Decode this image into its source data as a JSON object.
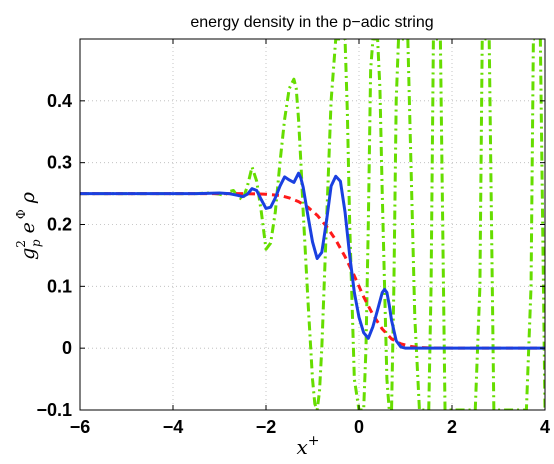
{
  "chart_data": {
    "type": "line",
    "title": "energy density in the p−adic string",
    "xlabel": "x",
    "xlabel_superscript": "+",
    "ylabel_parts": {
      "g": "g",
      "g_sup": "2",
      "g_sub": "p",
      "e": "e",
      "phi": "Φ",
      "rho": "ρ"
    },
    "xlim": [
      -6,
      4
    ],
    "ylim": [
      -0.1,
      0.5
    ],
    "xticks": [
      -6,
      -4,
      -2,
      0,
      2,
      4
    ],
    "xtick_labels": [
      "−6",
      "−4",
      "−2",
      "0",
      "2",
      "4"
    ],
    "yticks": [
      -0.1,
      0,
      0.1,
      0.2,
      0.3,
      0.4
    ],
    "ytick_labels": [
      "−0.1",
      "0",
      "0.1",
      "0.2",
      "0.3",
      "0.4"
    ],
    "grid": true,
    "series": [
      {
        "color": "#66dd00",
        "style": "dash-dot",
        "x": [
          -6,
          -3.5,
          -3.2,
          -3.0,
          -2.9,
          -2.8,
          -2.7,
          -2.6,
          -2.5,
          -2.4,
          -2.3,
          -2.2,
          -2.1,
          -2.0,
          -1.9,
          -1.8,
          -1.7,
          -1.6,
          -1.5,
          -1.4,
          -1.35,
          -1.3,
          -1.25,
          -1.2,
          -1.1,
          -1.0,
          -0.95,
          -0.9,
          -0.85,
          -0.8,
          -0.7,
          -0.6,
          -0.5,
          -0.45,
          -0.4,
          -0.35,
          -0.3,
          -0.25,
          -0.2,
          -0.1,
          0.0,
          0.05,
          0.1,
          0.15,
          0.2,
          0.25,
          0.3,
          0.35,
          0.4,
          0.45,
          0.5,
          0.55,
          0.6,
          0.65,
          0.7,
          0.75,
          0.8,
          0.85,
          0.9,
          0.95,
          1.0,
          1.05,
          1.1,
          1.2,
          1.3,
          1.4,
          1.5,
          1.55,
          1.6,
          1.65,
          1.7,
          1.75,
          1.8,
          1.85,
          1.9,
          2.0,
          2.1,
          2.2,
          2.3,
          2.4,
          2.5,
          2.6,
          2.65,
          2.7,
          2.75,
          2.8,
          2.85,
          2.9,
          3.0,
          3.1,
          3.2,
          3.3,
          3.4,
          3.5,
          3.6,
          3.7,
          3.75,
          3.8,
          3.85,
          3.9,
          3.95,
          4.0
        ],
        "y": [
          0.25,
          0.25,
          0.251,
          0.249,
          0.247,
          0.253,
          0.255,
          0.245,
          0.24,
          0.262,
          0.293,
          0.27,
          0.22,
          0.16,
          0.17,
          0.22,
          0.3,
          0.37,
          0.42,
          0.435,
          0.42,
          0.37,
          0.3,
          0.22,
          0.08,
          -0.05,
          -0.09,
          -0.1,
          -0.07,
          0.0,
          0.2,
          0.4,
          0.5,
          0.5,
          0.5,
          0.5,
          0.5,
          0.38,
          0.2,
          -0.05,
          -0.1,
          -0.1,
          -0.1,
          0.0,
          0.2,
          0.45,
          0.5,
          0.5,
          0.5,
          0.42,
          0.25,
          0.1,
          -0.05,
          -0.1,
          -0.1,
          0.1,
          0.4,
          0.5,
          0.5,
          0.5,
          0.5,
          0.5,
          0.35,
          0.05,
          -0.1,
          -0.1,
          -0.1,
          0.1,
          0.5,
          0.5,
          0.5,
          0.5,
          0.2,
          -0.1,
          -0.1,
          -0.1,
          -0.1,
          -0.1,
          -0.1,
          -0.1,
          -0.1,
          0.1,
          0.5,
          0.5,
          0.5,
          0.5,
          0.2,
          -0.1,
          -0.1,
          -0.1,
          -0.1,
          -0.1,
          -0.1,
          -0.1,
          -0.1,
          0.1,
          0.5,
          0.5,
          0.5,
          0.5,
          0.2,
          -0.1
        ]
      },
      {
        "color": "#ff1a1a",
        "style": "dashed",
        "x": [
          -6,
          -4,
          -3,
          -2.5,
          -2.0,
          -1.7,
          -1.5,
          -1.3,
          -1.1,
          -0.9,
          -0.7,
          -0.5,
          -0.3,
          -0.1,
          0.0,
          0.1,
          0.3,
          0.5,
          0.7,
          0.9,
          1.1,
          1.3,
          1.6,
          2.0,
          3.0,
          4.0
        ],
        "y": [
          0.25,
          0.25,
          0.25,
          0.25,
          0.249,
          0.247,
          0.243,
          0.237,
          0.228,
          0.215,
          0.197,
          0.175,
          0.148,
          0.117,
          0.1,
          0.083,
          0.054,
          0.031,
          0.015,
          0.007,
          0.003,
          0.001,
          0.0003,
          0.0001,
          0.0,
          0.0
        ]
      },
      {
        "color": "#1a40e0",
        "style": "solid",
        "x": [
          -6,
          -3.5,
          -3.0,
          -2.8,
          -2.6,
          -2.5,
          -2.4,
          -2.3,
          -2.2,
          -2.1,
          -2.0,
          -1.9,
          -1.8,
          -1.7,
          -1.6,
          -1.5,
          -1.4,
          -1.3,
          -1.25,
          -1.2,
          -1.1,
          -1.0,
          -0.9,
          -0.8,
          -0.7,
          -0.6,
          -0.5,
          -0.4,
          -0.3,
          -0.2,
          -0.1,
          0.0,
          0.1,
          0.2,
          0.3,
          0.4,
          0.5,
          0.55,
          0.6,
          0.65,
          0.7,
          0.8,
          0.9,
          1.0,
          1.1,
          1.3,
          1.6,
          2.0,
          3.0,
          4.0
        ],
        "y": [
          0.25,
          0.25,
          0.251,
          0.25,
          0.247,
          0.245,
          0.249,
          0.258,
          0.255,
          0.24,
          0.226,
          0.228,
          0.243,
          0.262,
          0.277,
          0.272,
          0.268,
          0.283,
          0.275,
          0.26,
          0.215,
          0.172,
          0.145,
          0.155,
          0.205,
          0.262,
          0.278,
          0.27,
          0.22,
          0.15,
          0.09,
          0.05,
          0.025,
          0.016,
          0.035,
          0.062,
          0.09,
          0.095,
          0.09,
          0.07,
          0.045,
          0.012,
          0.002,
          0.0,
          0.0,
          0.0,
          0.0,
          0.0,
          0.0,
          0.0
        ]
      }
    ]
  }
}
